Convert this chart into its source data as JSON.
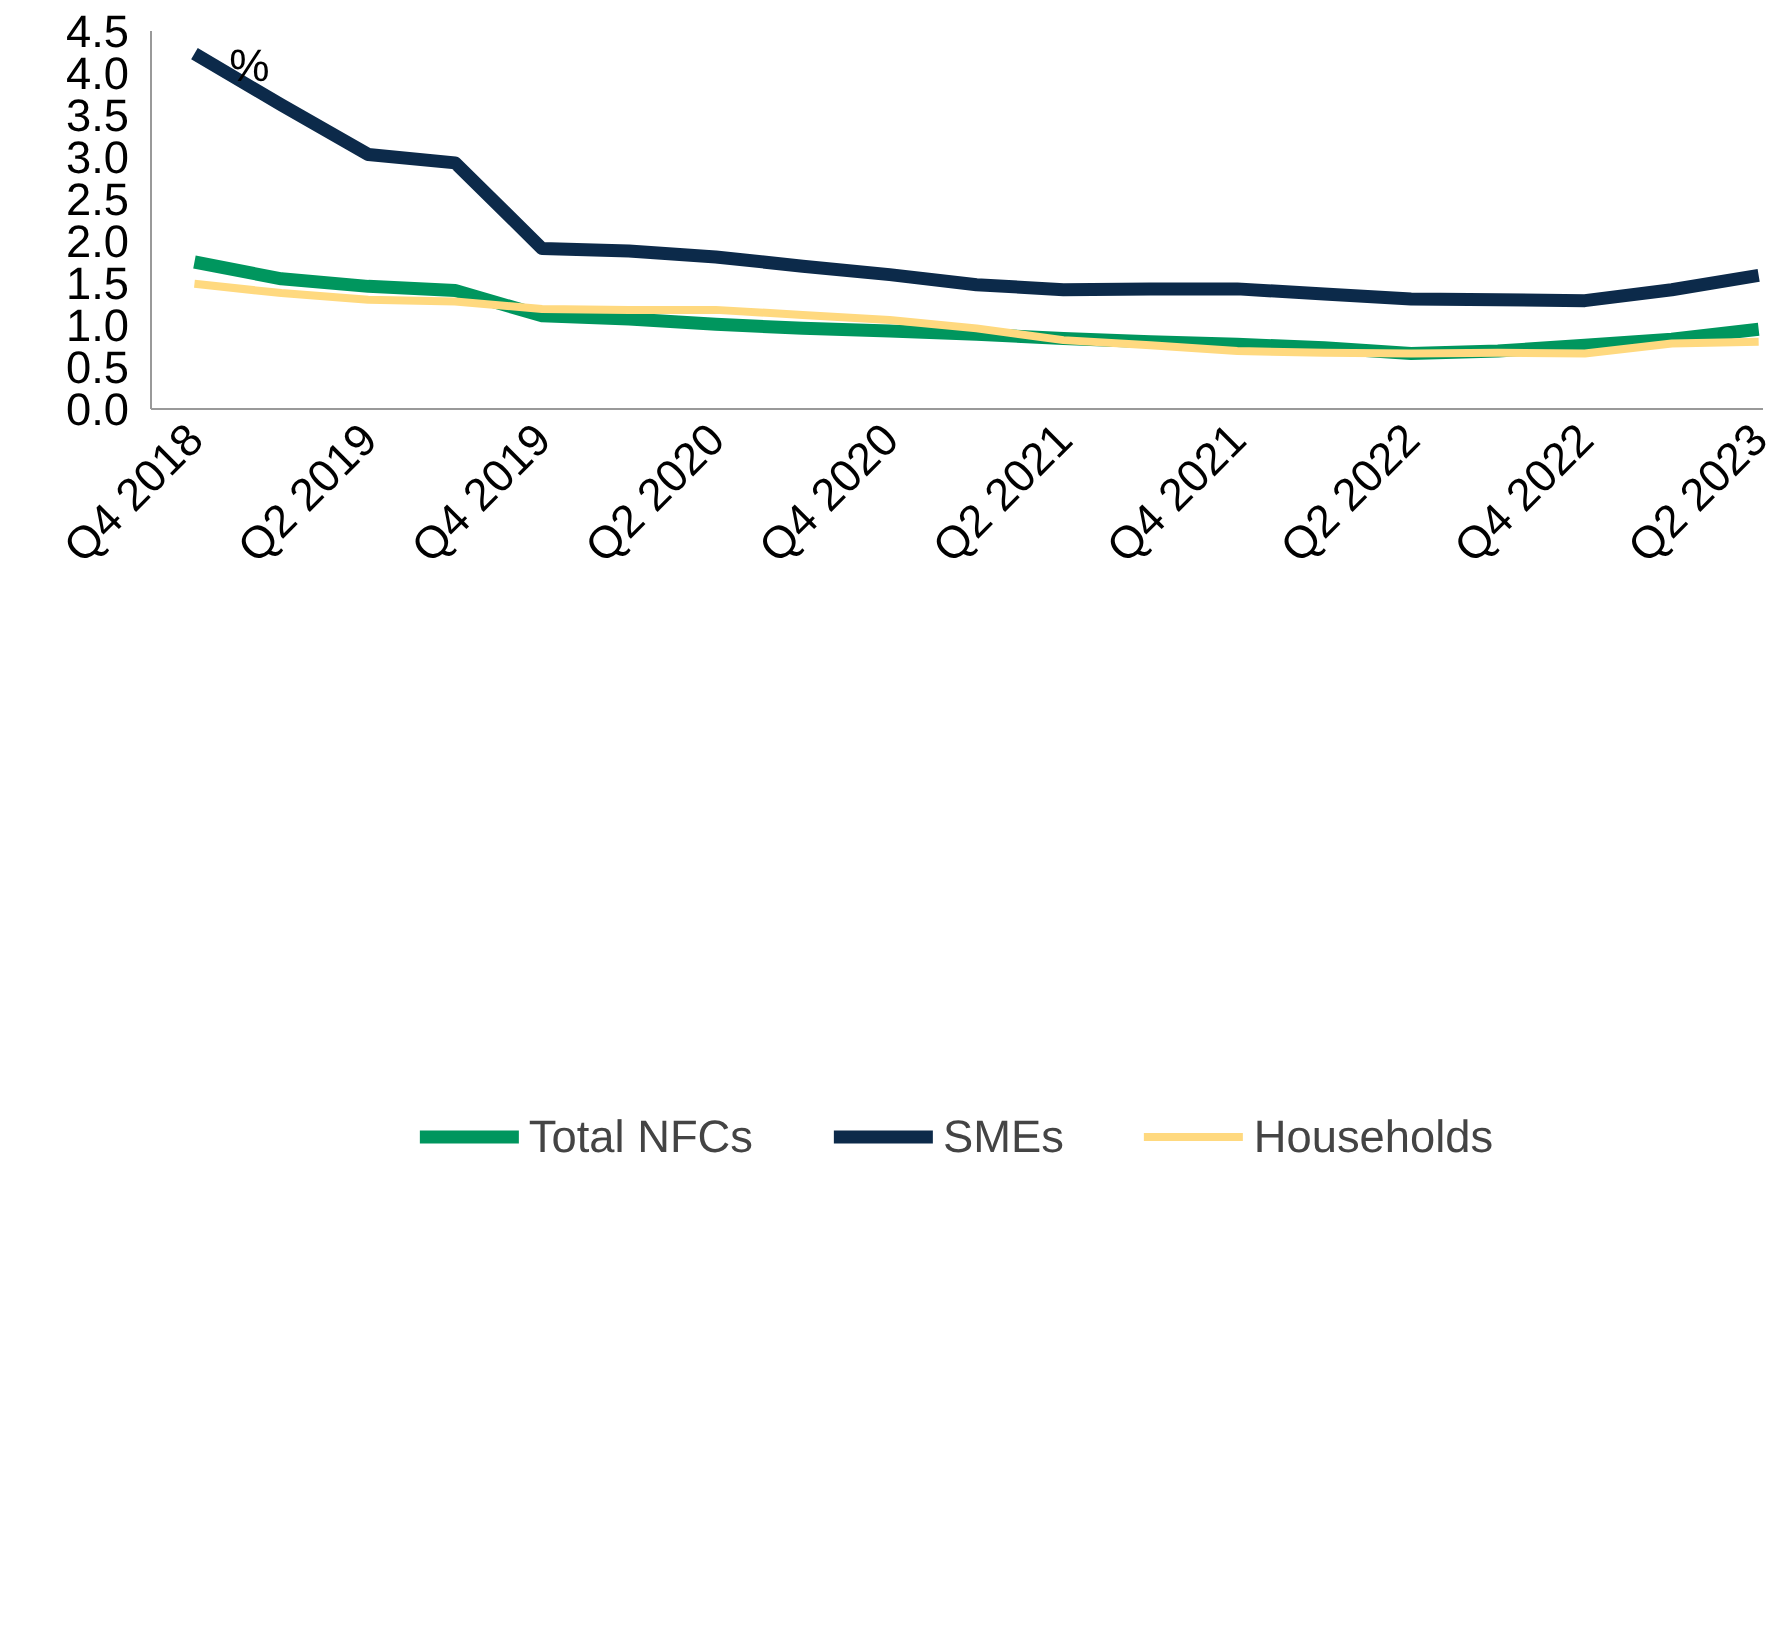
{
  "chart_data": {
    "type": "line",
    "ylabel": "%",
    "categories": [
      "Q4 2018",
      null,
      "Q2 2019",
      null,
      "Q4 2019",
      null,
      "Q2 2020",
      null,
      "Q4 2020",
      null,
      "Q2 2021",
      null,
      "Q4 2021",
      null,
      "Q2 2022",
      null,
      "Q4 2022",
      null,
      "Q2 2023"
    ],
    "series": [
      {
        "name": "Total NFCs",
        "color": "#00965e",
        "values": [
          1.75,
          1.55,
          1.46,
          1.41,
          1.11,
          1.07,
          1.01,
          0.96,
          0.93,
          0.89,
          0.84,
          0.8,
          0.77,
          0.73,
          0.66,
          0.69,
          0.76,
          0.83,
          0.95
        ]
      },
      {
        "name": "SMEs",
        "color": "#0c2a4a",
        "values": [
          4.23,
          3.62,
          3.03,
          2.93,
          1.91,
          1.88,
          1.81,
          1.7,
          1.6,
          1.48,
          1.42,
          1.43,
          1.43,
          1.37,
          1.31,
          1.3,
          1.29,
          1.42,
          1.59
        ]
      },
      {
        "name": "Households",
        "color": "#ffd97f",
        "values": [
          1.49,
          1.38,
          1.3,
          1.28,
          1.19,
          1.18,
          1.18,
          1.12,
          1.06,
          0.96,
          0.82,
          0.76,
          0.69,
          0.67,
          0.66,
          0.67,
          0.66,
          0.78,
          0.8
        ]
      }
    ],
    "ylim": [
      0,
      4.5
    ],
    "yticks": [
      {
        "value": 0,
        "label": "0.0"
      },
      {
        "value": 0.5,
        "label": "0.5"
      },
      {
        "value": 1,
        "label": "1.0"
      },
      {
        "value": 1.5,
        "label": "1.5"
      },
      {
        "value": 2,
        "label": "2.0"
      },
      {
        "value": 2.5,
        "label": "2.5"
      },
      {
        "value": 3,
        "label": "3.0"
      },
      {
        "value": 3.5,
        "label": "3.5"
      },
      {
        "value": 4,
        "label": "4.0"
      },
      {
        "value": 4.5,
        "label": "4.5"
      }
    ],
    "grid": false,
    "legend": "bottom",
    "marker": "none",
    "line_style": "solid"
  }
}
